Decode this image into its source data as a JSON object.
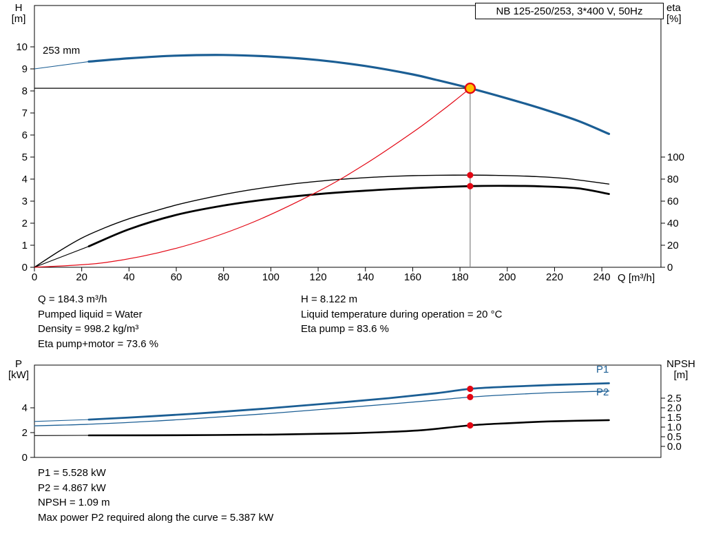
{
  "window": {
    "title_box": "NB 125-250/253, 3*400 V, 50Hz"
  },
  "colors": {
    "curve_blue": "#1b5e94",
    "curve_black": "#000000",
    "system_red": "#e30613",
    "duty_fill": "#ffc000",
    "axis_black": "#000000",
    "duty_guide_gray": "#7f7f7f"
  },
  "labels": {
    "impeller_size": "253 mm",
    "p1": "P1",
    "p2": "P2",
    "h_axis_1": "H",
    "h_axis_2": "[m]",
    "eta_axis_1": "eta",
    "eta_axis_2": "[%]",
    "q_axis": "Q [m³/h]",
    "p_axis_1": "P",
    "p_axis_2": "[kW]",
    "npsh_axis_1": "NPSH",
    "npsh_axis_2": "[m]"
  },
  "annotations": {
    "info_top_left": [
      "Q = 184.3 m³/h",
      "Pumped liquid = Water",
      "Density = 998.2 kg/m³",
      "Eta pump+motor = 73.6 %"
    ],
    "info_top_right": [
      "H = 8.122 m",
      "Liquid temperature during operation = 20 °C",
      "Eta pump = 83.6 %"
    ],
    "info_bottom": [
      "P1 = 5.528 kW",
      "P2 = 4.867 kW",
      "NPSH = 1.09 m",
      "Max power P2 required along the curve = 5.387 kW"
    ]
  },
  "chart_data": [
    {
      "id": "qh",
      "type": "line",
      "title": "NB 125-250/253, 3*400 V, 50Hz",
      "xlabel": "Q [m³/h]",
      "ylabel": "H [m]",
      "y2label": "eta [%]",
      "xlim": [
        0,
        265
      ],
      "ylim": [
        0,
        11.875
      ],
      "y2_scale": "eta_pct = 20 * H_m",
      "x_ticks": [
        0,
        20,
        40,
        60,
        80,
        100,
        120,
        140,
        160,
        180,
        200,
        220,
        240
      ],
      "show_x_tick_labels": true,
      "left_ticks": {
        "axis": "H",
        "values": [
          0,
          1,
          2,
          3,
          4,
          5,
          6,
          7,
          8,
          9,
          10
        ]
      },
      "right_ticks": {
        "axis": "eta",
        "values": [
          0,
          20,
          40,
          60,
          80,
          100
        ]
      },
      "series": [
        {
          "name": "head-curve-253mm",
          "axis": "H",
          "color_key": "curve_blue",
          "width": 3.2,
          "lead_x": [
            0,
            23
          ],
          "lead_y": [
            9.0,
            9.33
          ],
          "x": [
            23,
            40,
            60,
            80,
            100,
            120,
            140,
            160,
            170,
            184.3,
            200,
            215,
            230,
            243
          ],
          "y": [
            9.33,
            9.48,
            9.6,
            9.63,
            9.56,
            9.4,
            9.13,
            8.75,
            8.5,
            8.122,
            7.66,
            7.18,
            6.64,
            6.05
          ]
        },
        {
          "name": "eta-pump-curve",
          "axis": "eta",
          "color_key": "curve_black",
          "width": 1.4,
          "x": [
            0,
            10,
            20,
            30,
            40,
            50,
            60,
            70,
            80,
            90,
            100,
            110,
            120,
            130,
            140,
            150,
            160,
            170,
            184.3,
            195,
            210,
            225,
            243
          ],
          "y": [
            0,
            14,
            26.5,
            36,
            44,
            50.5,
            56.5,
            61.5,
            66,
            69.8,
            73,
            75.8,
            78,
            79.9,
            81.3,
            82.4,
            83.1,
            83.5,
            83.6,
            83.4,
            82.5,
            80.5,
            75.5
          ]
        },
        {
          "name": "eta-pump-motor-curve",
          "axis": "eta",
          "color_key": "curve_black",
          "width": 2.8,
          "lead_x": [
            0,
            23
          ],
          "lead_y": [
            0,
            19
          ],
          "x": [
            23,
            40,
            60,
            80,
            100,
            120,
            140,
            160,
            184.3,
            200,
            215,
            230,
            243
          ],
          "y": [
            19,
            34.5,
            47.5,
            56,
            62,
            66.4,
            69.5,
            71.8,
            73.6,
            73.9,
            73.4,
            71.6,
            66.5
          ]
        },
        {
          "name": "system-curve",
          "axis": "H",
          "color_key": "system_red",
          "width": 1.2,
          "x": [
            0,
            30,
            60,
            90,
            120,
            140,
            160,
            170,
            178,
            184.3
          ],
          "y": [
            0,
            0.215,
            0.861,
            1.937,
            3.444,
            4.687,
            6.121,
            6.911,
            7.575,
            8.122
          ]
        }
      ],
      "guide_lines": [
        {
          "orient": "v",
          "axis": "H",
          "q": 184.3,
          "v0": 0,
          "v1": 8.122,
          "color_key": "duty_guide_gray",
          "width": 1.2
        },
        {
          "orient": "h",
          "axis": "H",
          "v": 8.122,
          "q0": 0,
          "q1": 184.3,
          "color_key": "axis_black",
          "width": 1.2
        }
      ],
      "markers": [
        {
          "q": 184.3,
          "v": 8.122,
          "axis": "H",
          "style": "duty"
        },
        {
          "q": 184.3,
          "v": 83.6,
          "axis": "eta",
          "style": "dot"
        },
        {
          "q": 184.3,
          "v": 73.6,
          "axis": "eta",
          "style": "dot"
        }
      ],
      "duty_point": {
        "Q_m3h": 184.3,
        "H_m": 8.122,
        "eta_pump_pct": 83.6,
        "eta_pump_motor_pct": 73.6
      }
    },
    {
      "id": "power-npsh",
      "type": "line",
      "xlabel": "Q [m³/h]",
      "ylabel": "P [kW]",
      "y2label": "NPSH [m]",
      "xlim": [
        0,
        265
      ],
      "ylim": [
        0,
        7.44
      ],
      "x_ticks": [],
      "show_x_tick_labels": false,
      "left_ticks": {
        "axis": "P",
        "values": [
          0,
          2,
          4
        ]
      },
      "right_ticks": {
        "axis": "N",
        "values": [
          "0.0",
          "0.5",
          "1.0",
          "1.5",
          "2.0",
          "2.5"
        ]
      },
      "series": [
        {
          "name": "p1-curve",
          "axis": "P",
          "color_key": "curve_blue",
          "width": 2.8,
          "lead_x": [
            0,
            23
          ],
          "lead_y": [
            2.9,
            3.05
          ],
          "x": [
            23,
            50,
            75,
            100,
            125,
            150,
            170,
            184.3,
            200,
            220,
            243
          ],
          "y": [
            3.05,
            3.32,
            3.62,
            3.97,
            4.36,
            4.78,
            5.18,
            5.528,
            5.7,
            5.85,
            5.98
          ]
        },
        {
          "name": "p2-curve",
          "axis": "P",
          "color_key": "curve_blue",
          "width": 1.3,
          "x": [
            0,
            23,
            50,
            75,
            100,
            125,
            150,
            170,
            184.3,
            200,
            220,
            243
          ],
          "y": [
            2.55,
            2.67,
            2.92,
            3.22,
            3.55,
            3.92,
            4.3,
            4.62,
            4.867,
            5.05,
            5.23,
            5.35
          ]
        },
        {
          "name": "npsh-curve",
          "axis": "N",
          "color_key": "curve_black",
          "width": 2.6,
          "lead_x": [
            0,
            23
          ],
          "lead_y": [
            0.56,
            0.57
          ],
          "x": [
            23,
            60,
            100,
            130,
            150,
            165,
            184.3,
            200,
            220,
            243
          ],
          "y": [
            0.57,
            0.58,
            0.61,
            0.67,
            0.75,
            0.85,
            1.09,
            1.2,
            1.3,
            1.36
          ]
        }
      ],
      "guide_lines": [],
      "markers": [
        {
          "q": 184.3,
          "v": 5.528,
          "axis": "P",
          "style": "dot"
        },
        {
          "q": 184.3,
          "v": 4.867,
          "axis": "P",
          "style": "dot"
        },
        {
          "q": 184.3,
          "v": 1.09,
          "axis": "N",
          "style": "dot"
        }
      ],
      "duty_point": {
        "P1_kW": 5.528,
        "P2_kW": 4.867,
        "NPSH_m": 1.09,
        "max_P2_along_curve_kW": 5.387
      }
    }
  ]
}
